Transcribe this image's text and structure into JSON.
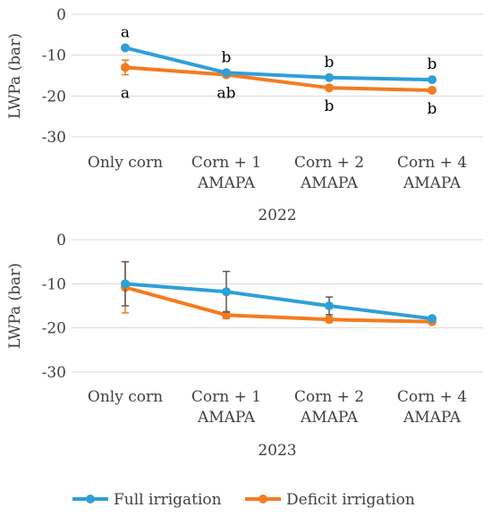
{
  "chart_data": [
    {
      "type": "line",
      "title": "",
      "xlabel": "2022",
      "ylabel": "LWPa (bar)",
      "ylim": [
        -30,
        0
      ],
      "yticks": [
        0,
        -10,
        -20,
        -30
      ],
      "categories": [
        "Only corn",
        "Corn + 1\nAMAPA",
        "Corn + 2\nAMAPA",
        "Corn + 4\nAMAPA"
      ],
      "series": [
        {
          "name": "Full irrigation",
          "color": "#2E9FD8",
          "values": [
            -8.2,
            -14.3,
            -15.5,
            -16.0
          ],
          "errors": [
            0,
            0,
            0,
            0
          ],
          "letters": [
            "a",
            "b",
            "b",
            "b"
          ],
          "letter_pos": "above"
        },
        {
          "name": "Deficit irrigation",
          "color": "#F47B20",
          "values": [
            -13.0,
            -14.8,
            -18.0,
            -18.6
          ],
          "errors": [
            1.8,
            0,
            0,
            0
          ],
          "letters": [
            "a",
            "ab",
            "b",
            "b"
          ],
          "letter_pos": "below"
        }
      ]
    },
    {
      "type": "line",
      "title": "",
      "xlabel": "2023",
      "ylabel": "LWPa (bar)",
      "ylim": [
        -30,
        0
      ],
      "yticks": [
        0,
        -10,
        -20,
        -30
      ],
      "categories": [
        "Only corn",
        "Corn + 1\nAMAPA",
        "Corn + 2\nAMAPA",
        "Corn + 4\nAMAPA"
      ],
      "series": [
        {
          "name": "Full irrigation",
          "color": "#2E9FD8",
          "values": [
            -10.0,
            -11.8,
            -15.0,
            -17.9
          ],
          "errors": [
            5.0,
            4.6,
            2.0,
            0
          ],
          "letters": [],
          "letter_pos": "above"
        },
        {
          "name": "Deficit irrigation",
          "color": "#F47B20",
          "values": [
            -10.8,
            -17.1,
            -18.1,
            -18.6
          ],
          "errors": [
            5.8,
            0.8,
            0.6,
            0.4
          ],
          "letters": [],
          "letter_pos": "below"
        }
      ]
    }
  ],
  "legend": {
    "placement": "bottom",
    "items": [
      {
        "label": "Full irrigation",
        "color": "#2E9FD8"
      },
      {
        "label": "Deficit irrigation",
        "color": "#F47B20"
      }
    ]
  }
}
